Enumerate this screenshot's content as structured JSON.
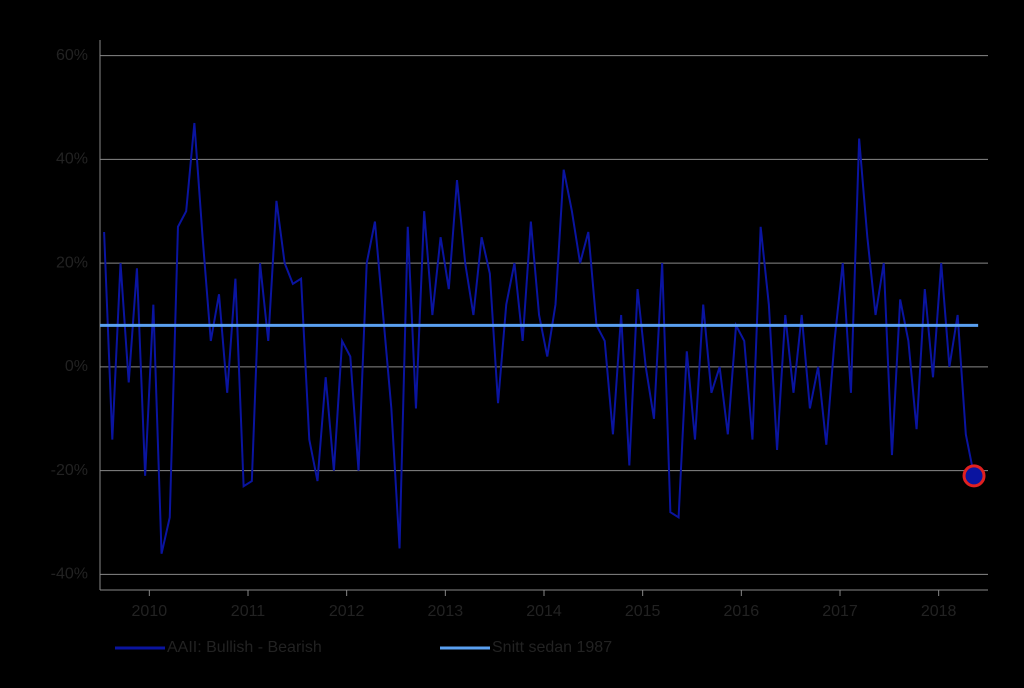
{
  "chart_data": {
    "type": "line",
    "xlim": [
      2010,
      2019
    ],
    "xticks": [
      {
        "value": 2010.5,
        "label": "2010"
      },
      {
        "value": 2011.5,
        "label": "2011"
      },
      {
        "value": 2012.5,
        "label": "2012"
      },
      {
        "value": 2013.5,
        "label": "2013"
      },
      {
        "value": 2014.5,
        "label": "2014"
      },
      {
        "value": 2015.5,
        "label": "2015"
      },
      {
        "value": 2016.5,
        "label": "2016"
      },
      {
        "value": 2017.5,
        "label": "2017"
      },
      {
        "value": 2018.5,
        "label": "2018"
      }
    ],
    "ylim": [
      -43,
      63
    ],
    "yticks": [
      {
        "value": -40,
        "label": "-40%"
      },
      {
        "value": -20,
        "label": "-20%"
      },
      {
        "value": 0,
        "label": "0%"
      },
      {
        "value": 20,
        "label": "20%"
      },
      {
        "value": 40,
        "label": "40%"
      },
      {
        "value": 60,
        "label": "60%"
      }
    ],
    "grid": true,
    "series": [
      {
        "name": "AAII: Bullish - Bearish",
        "color": "#0a14a0",
        "values": [
          26,
          -14,
          20,
          -3,
          19,
          -21,
          12,
          -36,
          -29,
          27,
          30,
          47,
          25,
          5,
          14,
          -5,
          17,
          -23,
          -22,
          20,
          5,
          32,
          20,
          16,
          17,
          -14,
          -22,
          -2,
          -20,
          5,
          2,
          -20,
          20,
          28,
          10,
          -8,
          -35,
          27,
          -8,
          30,
          10,
          25,
          15,
          36,
          20,
          10,
          25,
          18,
          -7,
          12,
          20,
          5,
          28,
          10,
          2,
          12,
          38,
          30,
          20,
          26,
          8,
          5,
          -13,
          10,
          -19,
          15,
          0,
          -10,
          20,
          -28,
          -29,
          3,
          -14,
          12,
          -5,
          0,
          -13,
          8,
          5,
          -14,
          27,
          12,
          -16,
          10,
          -5,
          10,
          -8,
          0,
          -15,
          5,
          20,
          -5,
          44,
          25,
          10,
          20,
          -17,
          13,
          5,
          -12,
          15,
          -2,
          20,
          0,
          10,
          -13,
          -21
        ]
      },
      {
        "name": "Snitt sedan 1987",
        "color": "#5aa0f0",
        "values": [
          8,
          8
        ]
      }
    ],
    "highlight_color": "#e02020"
  }
}
